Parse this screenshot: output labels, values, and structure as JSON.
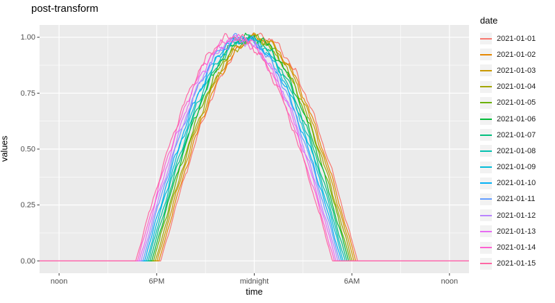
{
  "chart_data": {
    "type": "line",
    "title": "post-transform",
    "xlabel": "time",
    "ylabel": "values",
    "legend_title": "date",
    "ylim": [
      0,
      1
    ],
    "x_domain_hours_from_noon": [
      0,
      24
    ],
    "grid": "on",
    "legend_position": "right",
    "panel_background": "#EBEBEB",
    "gridline_color": "#FFFFFF",
    "tick_label_color": "#4D4D4D",
    "x_ticks": [
      {
        "t": 0,
        "label": "noon"
      },
      {
        "t": 6,
        "label": "6PM"
      },
      {
        "t": 12,
        "label": "midnight"
      },
      {
        "t": 18,
        "label": "6AM"
      },
      {
        "t": 24,
        "label": "noon"
      }
    ],
    "x_minor_ticks": [
      3,
      9,
      15,
      21
    ],
    "y_ticks": [
      {
        "v": 0.0,
        "label": "0.00"
      },
      {
        "v": 0.25,
        "label": "0.25"
      },
      {
        "v": 0.5,
        "label": "0.50"
      },
      {
        "v": 0.75,
        "label": "0.75"
      },
      {
        "v": 1.0,
        "label": "1.00"
      }
    ],
    "y_minor_ticks": [
      0.125,
      0.375,
      0.625,
      0.875
    ],
    "shape": "each series is 0 outside [start_h,end_h] hours-after-noon, a noisy half-sine arch peaking near 1.0 inside",
    "series": [
      {
        "name": "2021-01-01",
        "color": "#F8766D",
        "start_h": 6.25,
        "end_h": 18.35,
        "peak": 1.0
      },
      {
        "name": "2021-01-02",
        "color": "#E58700",
        "start_h": 6.14,
        "end_h": 18.24,
        "peak": 1.0
      },
      {
        "name": "2021-01-03",
        "color": "#C99800",
        "start_h": 6.03,
        "end_h": 18.13,
        "peak": 1.0
      },
      {
        "name": "2021-01-04",
        "color": "#A3A500",
        "start_h": 5.92,
        "end_h": 18.02,
        "peak": 1.0
      },
      {
        "name": "2021-01-05",
        "color": "#6BB100",
        "start_h": 5.81,
        "end_h": 17.91,
        "peak": 1.0
      },
      {
        "name": "2021-01-06",
        "color": "#00BA38",
        "start_h": 5.7,
        "end_h": 17.8,
        "peak": 1.0
      },
      {
        "name": "2021-01-07",
        "color": "#00BF7D",
        "start_h": 5.59,
        "end_h": 17.69,
        "peak": 1.0
      },
      {
        "name": "2021-01-08",
        "color": "#00C0AF",
        "start_h": 5.48,
        "end_h": 17.58,
        "peak": 1.0
      },
      {
        "name": "2021-01-09",
        "color": "#00BCD8",
        "start_h": 5.37,
        "end_h": 17.47,
        "peak": 1.0
      },
      {
        "name": "2021-01-10",
        "color": "#00B0F6",
        "start_h": 5.26,
        "end_h": 17.36,
        "peak": 1.0
      },
      {
        "name": "2021-01-11",
        "color": "#619CFF",
        "start_h": 5.15,
        "end_h": 17.25,
        "peak": 1.0
      },
      {
        "name": "2021-01-12",
        "color": "#B983FF",
        "start_h": 5.04,
        "end_h": 17.14,
        "peak": 1.0
      },
      {
        "name": "2021-01-13",
        "color": "#E76BF3",
        "start_h": 4.93,
        "end_h": 17.03,
        "peak": 1.0
      },
      {
        "name": "2021-01-14",
        "color": "#FD61D1",
        "start_h": 4.82,
        "end_h": 16.92,
        "peak": 1.0
      },
      {
        "name": "2021-01-15",
        "color": "#FF67A4",
        "start_h": 4.71,
        "end_h": 16.81,
        "peak": 1.0
      }
    ]
  }
}
